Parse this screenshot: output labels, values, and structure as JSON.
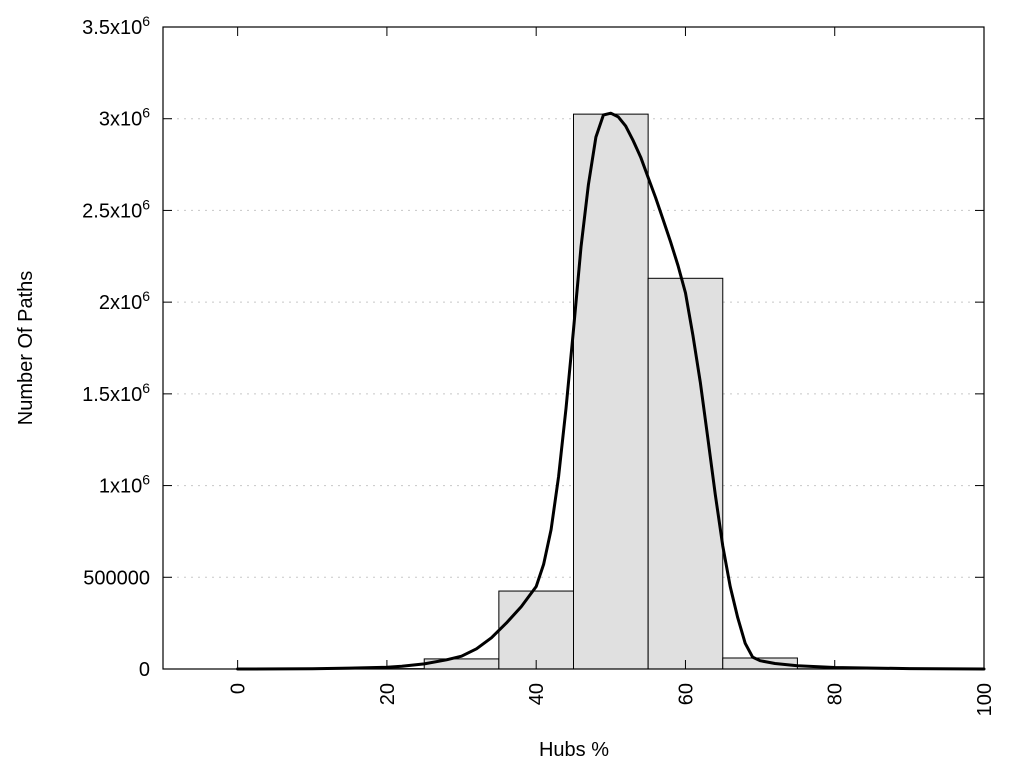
{
  "chart_data": {
    "type": "bar",
    "title": "",
    "xlabel": "Hubs %",
    "ylabel": "Number Of Paths",
    "xlim": [
      -10,
      100
    ],
    "ylim": [
      0,
      3500000
    ],
    "grid": {
      "x": false,
      "y": true
    },
    "x_ticks": [
      0,
      20,
      40,
      60,
      80,
      100
    ],
    "y_ticks": [
      {
        "value": 0,
        "label": "0"
      },
      {
        "value": 500000,
        "label": "500000"
      },
      {
        "value": 1000000,
        "label": "1x10",
        "exp": "6"
      },
      {
        "value": 1500000,
        "label": "1.5x10",
        "exp": "6"
      },
      {
        "value": 2000000,
        "label": "2x10",
        "exp": "6"
      },
      {
        "value": 2500000,
        "label": "2.5x10",
        "exp": "6"
      },
      {
        "value": 3000000,
        "label": "3x10",
        "exp": "6"
      },
      {
        "value": 3500000,
        "label": "3.5x10",
        "exp": "6"
      }
    ],
    "bar_color": "#e0e0e0",
    "bar_edge_color": "#000000",
    "line_color": "#000000",
    "bars": [
      {
        "x_start": -5,
        "x_end": 5,
        "value": 0
      },
      {
        "x_start": 5,
        "x_end": 15,
        "value": 0
      },
      {
        "x_start": 15,
        "x_end": 25,
        "value": 2000
      },
      {
        "x_start": 25,
        "x_end": 35,
        "value": 55000
      },
      {
        "x_start": 35,
        "x_end": 45,
        "value": 425000
      },
      {
        "x_start": 45,
        "x_end": 55,
        "value": 3025000
      },
      {
        "x_start": 55,
        "x_end": 65,
        "value": 2130000
      },
      {
        "x_start": 65,
        "x_end": 75,
        "value": 60000
      },
      {
        "x_start": 75,
        "x_end": 85,
        "value": 1000
      },
      {
        "x_start": 85,
        "x_end": 95,
        "value": 0
      }
    ],
    "curve": {
      "x": [
        0,
        10,
        15,
        20,
        22,
        25,
        28,
        30,
        32,
        34,
        36,
        38,
        40,
        41,
        42,
        43,
        44,
        45,
        46,
        47,
        48,
        49,
        50,
        51,
        52,
        53,
        54,
        55,
        56,
        57,
        58,
        59,
        60,
        61,
        62,
        63,
        64,
        65,
        66,
        67,
        68,
        69,
        70,
        72,
        75,
        80,
        90,
        100
      ],
      "y": [
        0,
        1000,
        5000,
        10000,
        15000,
        28000,
        50000,
        70000,
        110000,
        170000,
        250000,
        340000,
        450000,
        570000,
        760000,
        1050000,
        1420000,
        1850000,
        2300000,
        2640000,
        2900000,
        3020000,
        3030000,
        3010000,
        2960000,
        2880000,
        2790000,
        2680000,
        2570000,
        2450000,
        2330000,
        2200000,
        2050000,
        1820000,
        1560000,
        1260000,
        950000,
        670000,
        450000,
        280000,
        140000,
        65000,
        45000,
        30000,
        18000,
        8000,
        2000,
        0
      ]
    }
  }
}
